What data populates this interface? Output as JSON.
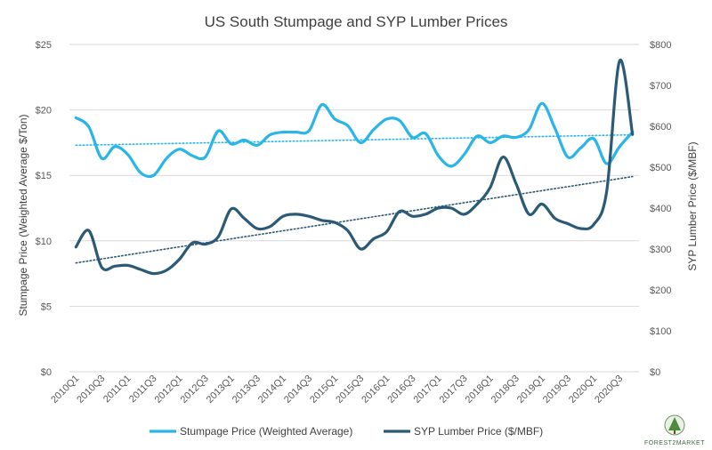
{
  "chart_data": {
    "type": "line",
    "title": "US South Stumpage and SYP Lumber Prices",
    "ylabel_left": "Stumpage Price (Weighted Average $/Ton)",
    "ylabel_right": "SYP Lumber Price ($/MBF)",
    "y_left_ticks": [
      "$0",
      "$5",
      "$10",
      "$15",
      "$20",
      "$25"
    ],
    "y_right_ticks": [
      "$0",
      "$100",
      "$200",
      "$300",
      "$400",
      "$500",
      "$600",
      "$700",
      "$800"
    ],
    "ylim_left": [
      0,
      25
    ],
    "ylim_right": [
      0,
      800
    ],
    "x_tick_labels": [
      "2010Q1",
      "2010Q3",
      "2011Q1",
      "2011Q3",
      "2012Q1",
      "2012Q3",
      "2013Q1",
      "2013Q3",
      "2014Q1",
      "2014Q3",
      "2015Q1",
      "2015Q3",
      "2016Q1",
      "2016Q3",
      "2017Q1",
      "2017Q3",
      "2018Q1",
      "2018Q3",
      "2019Q1",
      "2019Q3",
      "2020Q1",
      "2020Q3"
    ],
    "grid": true,
    "legend_position": "bottom",
    "series": [
      {
        "name": "Stumpage Price (Weighted Average)",
        "axis": "left",
        "color": "#29b5e8",
        "x": [
          "2010Q1",
          "2010Q2",
          "2010Q3",
          "2010Q4",
          "2011Q1",
          "2011Q2",
          "2011Q3",
          "2011Q4",
          "2012Q1",
          "2012Q2",
          "2012Q3",
          "2012Q4",
          "2013Q1",
          "2013Q2",
          "2013Q3",
          "2013Q4",
          "2014Q1",
          "2014Q2",
          "2014Q3",
          "2014Q4",
          "2015Q1",
          "2015Q2",
          "2015Q3",
          "2015Q4",
          "2016Q1",
          "2016Q2",
          "2016Q3",
          "2016Q4",
          "2017Q1",
          "2017Q2",
          "2017Q3",
          "2017Q4",
          "2018Q1",
          "2018Q2",
          "2018Q3",
          "2018Q4",
          "2019Q1",
          "2019Q2",
          "2019Q3",
          "2019Q4",
          "2020Q1",
          "2020Q2",
          "2020Q3",
          "2020Q4"
        ],
        "values": [
          19.4,
          18.7,
          16.3,
          17.2,
          16.6,
          15.2,
          15.0,
          16.3,
          17.0,
          16.5,
          16.4,
          18.4,
          17.4,
          17.7,
          17.3,
          18.1,
          18.3,
          18.3,
          18.4,
          20.4,
          19.3,
          18.8,
          17.5,
          18.5,
          19.3,
          19.2,
          17.9,
          18.2,
          16.5,
          15.7,
          16.6,
          18.0,
          17.5,
          18.0,
          17.9,
          18.5,
          20.5,
          18.6,
          16.4,
          17.1,
          17.8,
          15.9,
          17.2,
          18.3
        ]
      },
      {
        "name": "SYP Lumber Price ($/MBF)",
        "axis": "right",
        "color": "#2b5a77",
        "x": [
          "2010Q1",
          "2010Q2",
          "2010Q3",
          "2010Q4",
          "2011Q1",
          "2011Q2",
          "2011Q3",
          "2011Q4",
          "2012Q1",
          "2012Q2",
          "2012Q3",
          "2012Q4",
          "2013Q1",
          "2013Q2",
          "2013Q3",
          "2013Q4",
          "2014Q1",
          "2014Q2",
          "2014Q3",
          "2014Q4",
          "2015Q1",
          "2015Q2",
          "2015Q3",
          "2015Q4",
          "2016Q1",
          "2016Q2",
          "2016Q3",
          "2016Q4",
          "2017Q1",
          "2017Q2",
          "2017Q3",
          "2017Q4",
          "2018Q1",
          "2018Q2",
          "2018Q3",
          "2018Q4",
          "2019Q1",
          "2019Q2",
          "2019Q3",
          "2019Q4",
          "2020Q1",
          "2020Q2",
          "2020Q3",
          "2020Q4"
        ],
        "values": [
          305,
          345,
          255,
          258,
          260,
          250,
          240,
          248,
          275,
          315,
          312,
          330,
          398,
          375,
          350,
          355,
          380,
          385,
          380,
          370,
          365,
          345,
          300,
          325,
          342,
          392,
          380,
          385,
          400,
          400,
          385,
          410,
          450,
          525,
          460,
          385,
          410,
          375,
          362,
          350,
          360,
          440,
          760,
          580
        ]
      }
    ],
    "trendlines": [
      {
        "series": "Stumpage Price (Weighted Average)",
        "axis": "left",
        "color": "#29b5e8",
        "start": 17.3,
        "end": 18.1
      },
      {
        "series": "SYP Lumber Price ($/MBF)",
        "axis": "right",
        "color": "#2b5a77",
        "start": 266,
        "end": 477
      }
    ]
  },
  "logo": {
    "text": "FOREST2MARKET",
    "color": "#3d6b3a"
  }
}
